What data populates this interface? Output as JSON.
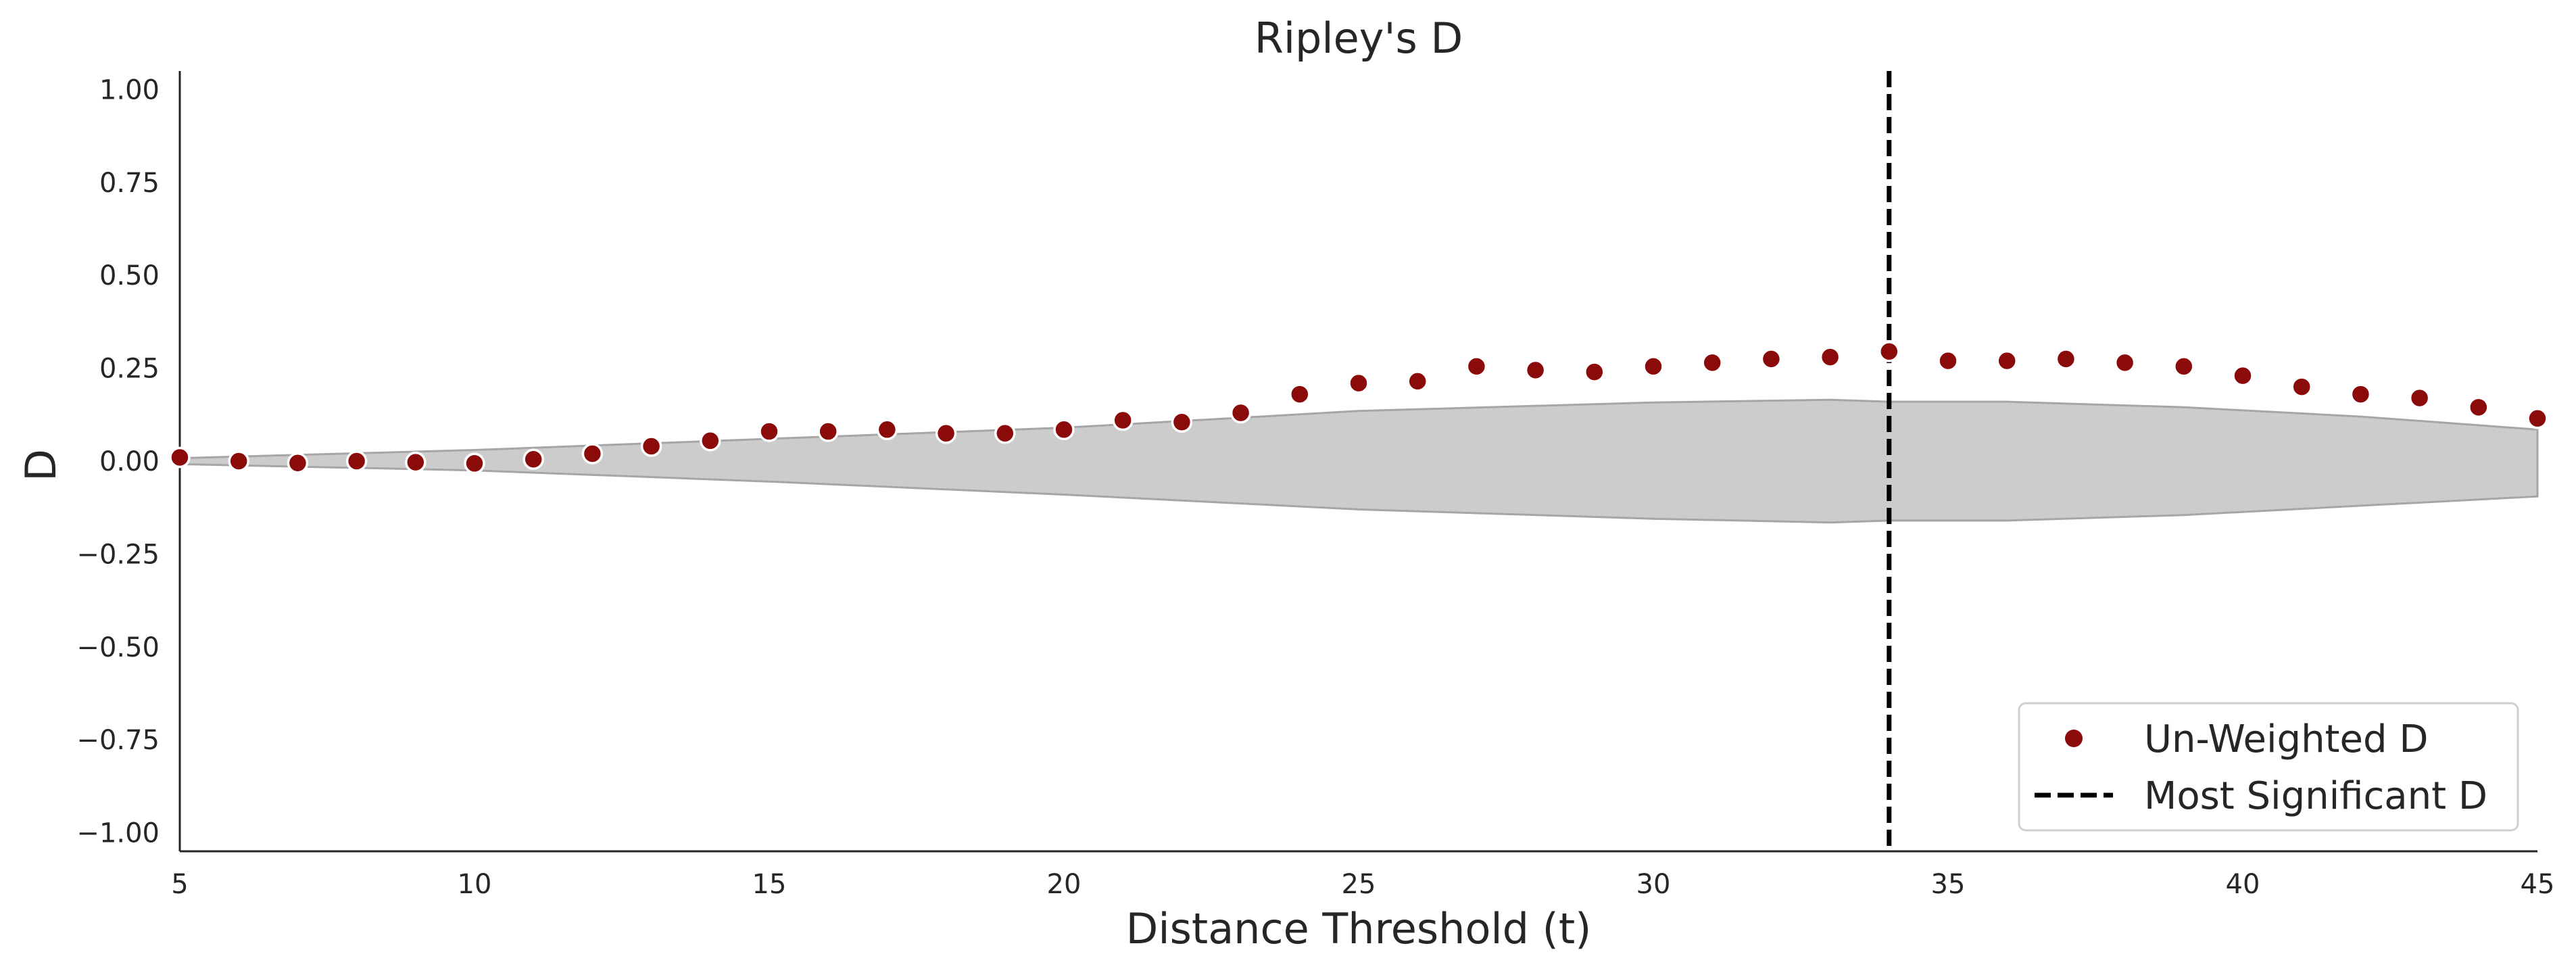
{
  "chart_data": {
    "type": "scatter",
    "title": "Ripley's D",
    "xlabel": "Distance Threshold (t)",
    "ylabel": "D",
    "xlim": [
      5,
      45
    ],
    "ylim": [
      -1.05,
      1.05
    ],
    "x_ticks": [
      5,
      10,
      15,
      20,
      25,
      30,
      35,
      40,
      45
    ],
    "x_tick_labels": [
      "5",
      "10",
      "15",
      "20",
      "25",
      "30",
      "35",
      "40",
      "45"
    ],
    "y_ticks": [
      1.0,
      0.75,
      0.5,
      0.25,
      0.0,
      -0.25,
      -0.5,
      -0.75,
      -1.0
    ],
    "y_tick_labels": [
      "1.00",
      "0.75",
      "0.50",
      "0.25",
      "0.00",
      "−0.25",
      "−0.50",
      "−0.75",
      "−1.00"
    ],
    "grid": false,
    "legend_position": "bottom-right",
    "series": [
      {
        "name": "Un-Weighted D",
        "kind": "scatter",
        "color": "#8b0a0a",
        "x": [
          5,
          6,
          7,
          8,
          9,
          10,
          11,
          12,
          13,
          14,
          15,
          16,
          17,
          18,
          19,
          20,
          21,
          22,
          23,
          24,
          25,
          26,
          27,
          28,
          29,
          30,
          31,
          32,
          33,
          34,
          35,
          36,
          37,
          38,
          39,
          40,
          41,
          42,
          43,
          44,
          45
        ],
        "y": [
          0.01,
          0.0,
          -0.005,
          0.0,
          -0.003,
          -0.006,
          0.005,
          0.02,
          0.04,
          0.055,
          0.08,
          0.08,
          0.085,
          0.075,
          0.075,
          0.085,
          0.11,
          0.105,
          0.13,
          0.18,
          0.21,
          0.215,
          0.255,
          0.245,
          0.24,
          0.255,
          0.265,
          0.275,
          0.28,
          0.295,
          0.27,
          0.27,
          0.275,
          0.265,
          0.255,
          0.23,
          0.2,
          0.18,
          0.17,
          0.145,
          0.115
        ]
      },
      {
        "name": "Most Significant D",
        "kind": "vline",
        "color": "#000000",
        "x": 34
      }
    ],
    "envelope": {
      "color": "#cccccc",
      "edge_color": "#a6a6a6",
      "x": [
        5,
        10,
        15,
        20,
        25,
        30,
        33,
        34,
        36,
        39,
        42,
        45
      ],
      "upper": [
        0.008,
        0.03,
        0.06,
        0.09,
        0.135,
        0.158,
        0.165,
        0.16,
        0.16,
        0.145,
        0.12,
        0.085
      ],
      "lower": [
        -0.008,
        -0.025,
        -0.055,
        -0.09,
        -0.13,
        -0.155,
        -0.165,
        -0.16,
        -0.16,
        -0.145,
        -0.12,
        -0.095
      ]
    }
  }
}
